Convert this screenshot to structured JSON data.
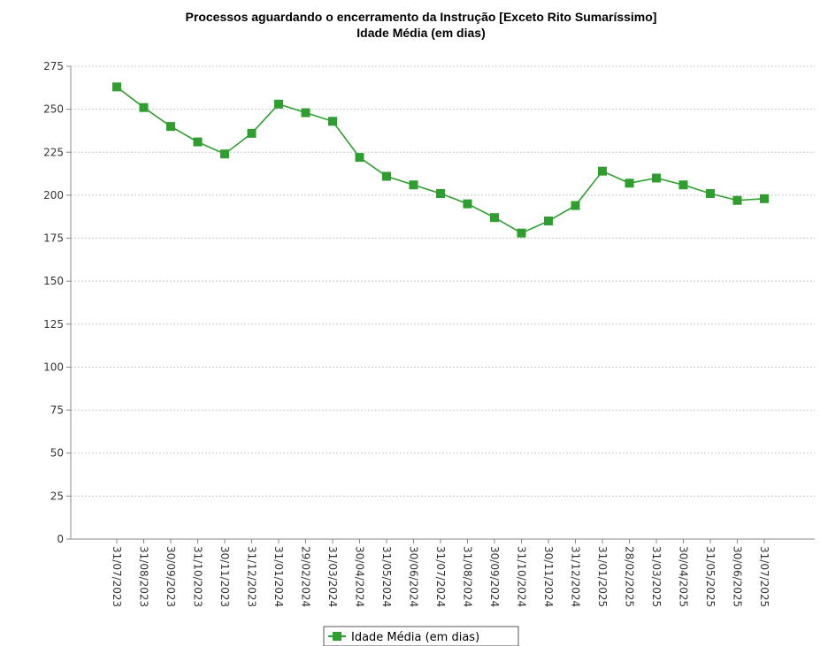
{
  "chart_data": {
    "type": "line",
    "title": "Processos aguardando o encerramento da Instrução [Exceto Rito Sumaríssimo]",
    "subtitle": "Idade Média (em dias)",
    "xlabel": "",
    "ylabel": "",
    "ylim": [
      0,
      275
    ],
    "yticks": [
      0,
      25,
      50,
      75,
      100,
      125,
      150,
      175,
      200,
      225,
      250,
      275
    ],
    "grid": true,
    "legend_position": "bottom",
    "categories": [
      "31/07/2023",
      "31/08/2023",
      "30/09/2023",
      "31/10/2023",
      "30/11/2023",
      "31/12/2023",
      "31/01/2024",
      "29/02/2024",
      "31/03/2024",
      "30/04/2024",
      "31/05/2024",
      "30/06/2024",
      "31/07/2024",
      "31/08/2024",
      "30/09/2024",
      "31/10/2024",
      "30/11/2024",
      "31/12/2024",
      "31/01/2025",
      "28/02/2025",
      "31/03/2025",
      "30/04/2025",
      "31/05/2025",
      "30/06/2025",
      "31/07/2025"
    ],
    "series": [
      {
        "name": "Idade Média (em dias)",
        "color": "#2e9e2e",
        "marker": "square",
        "values": [
          263,
          251,
          240,
          231,
          224,
          236,
          253,
          248,
          243,
          222,
          211,
          206,
          201,
          195,
          187,
          178,
          185,
          194,
          214,
          207,
          210,
          206,
          201,
          197,
          198
        ]
      }
    ]
  }
}
